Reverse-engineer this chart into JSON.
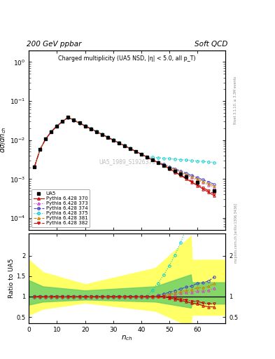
{
  "title_top": "200 GeV ppbar",
  "title_right": "Soft QCD",
  "plot_title": "Charged multiplicity (UA5 NSD, |η| < 5.0, all p_T)",
  "ylabel_main": "dσ/dn_ch",
  "ylabel_ratio": "Ratio to UA5",
  "xlabel": "n_ch",
  "watermark": "UA5_1989_S1926373",
  "rivet_label": "Rivet 3.1.10, ≥ 3.3M events",
  "arxiv_label": "mcplots.cern.ch [arXiv:1306.3436]",
  "xlim": [
    0,
    70
  ],
  "ylim_main": [
    5e-05,
    2.0
  ],
  "ylim_ratio": [
    0.35,
    2.55
  ],
  "ua5_color": "#000000",
  "colors_mc": [
    "#cc0000",
    "#cc44cc",
    "#4444cc",
    "#00cccc",
    "#cc8800",
    "#cc0000"
  ],
  "styles_mc": [
    "-",
    ":",
    "--",
    ":",
    "--",
    "-."
  ],
  "markers_mc": [
    "^",
    "^",
    "o",
    "o",
    "^",
    "v"
  ],
  "series_labels": [
    "Pythia 6.428 370",
    "Pythia 6.428 373",
    "Pythia 6.428 374",
    "Pythia 6.428 375",
    "Pythia 6.428 381",
    "Pythia 6.428 382"
  ],
  "background_color": "#ffffff",
  "peak_value": 0.038,
  "peak_n": 14
}
